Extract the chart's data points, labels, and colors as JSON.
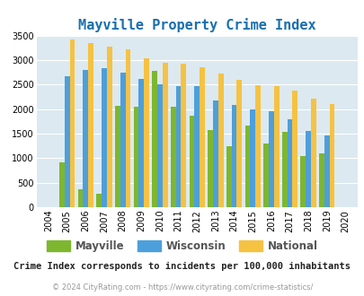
{
  "title": "Mayville Property Crime Index",
  "years": [
    2004,
    2005,
    2006,
    2007,
    2008,
    2009,
    2010,
    2011,
    2012,
    2013,
    2014,
    2015,
    2016,
    2017,
    2018,
    2019,
    2020
  ],
  "mayville": [
    0,
    920,
    360,
    270,
    2075,
    2050,
    2780,
    2040,
    1860,
    1570,
    1250,
    1670,
    1290,
    1530,
    1040,
    1090,
    0
  ],
  "wisconsin": [
    0,
    2670,
    2800,
    2830,
    2750,
    2610,
    2500,
    2460,
    2470,
    2180,
    2090,
    2000,
    1950,
    1790,
    1560,
    1470,
    0
  ],
  "national": [
    0,
    3420,
    3340,
    3270,
    3210,
    3040,
    2950,
    2920,
    2860,
    2720,
    2600,
    2490,
    2470,
    2380,
    2210,
    2110,
    0
  ],
  "mayville_color": "#7db72f",
  "wisconsin_color": "#4d9fdb",
  "national_color": "#f5c242",
  "ylim": [
    0,
    3500
  ],
  "yticks": [
    0,
    500,
    1000,
    1500,
    2000,
    2500,
    3000,
    3500
  ],
  "bg_color": "#dce9f0",
  "legend_labels": [
    "Mayville",
    "Wisconsin",
    "National"
  ],
  "footnote1": "Crime Index corresponds to incidents per 100,000 inhabitants",
  "footnote2": "© 2024 CityRating.com - https://www.cityrating.com/crime-statistics/",
  "title_color": "#1a6faf",
  "footnote1_color": "#222222",
  "footnote2_color": "#999999"
}
